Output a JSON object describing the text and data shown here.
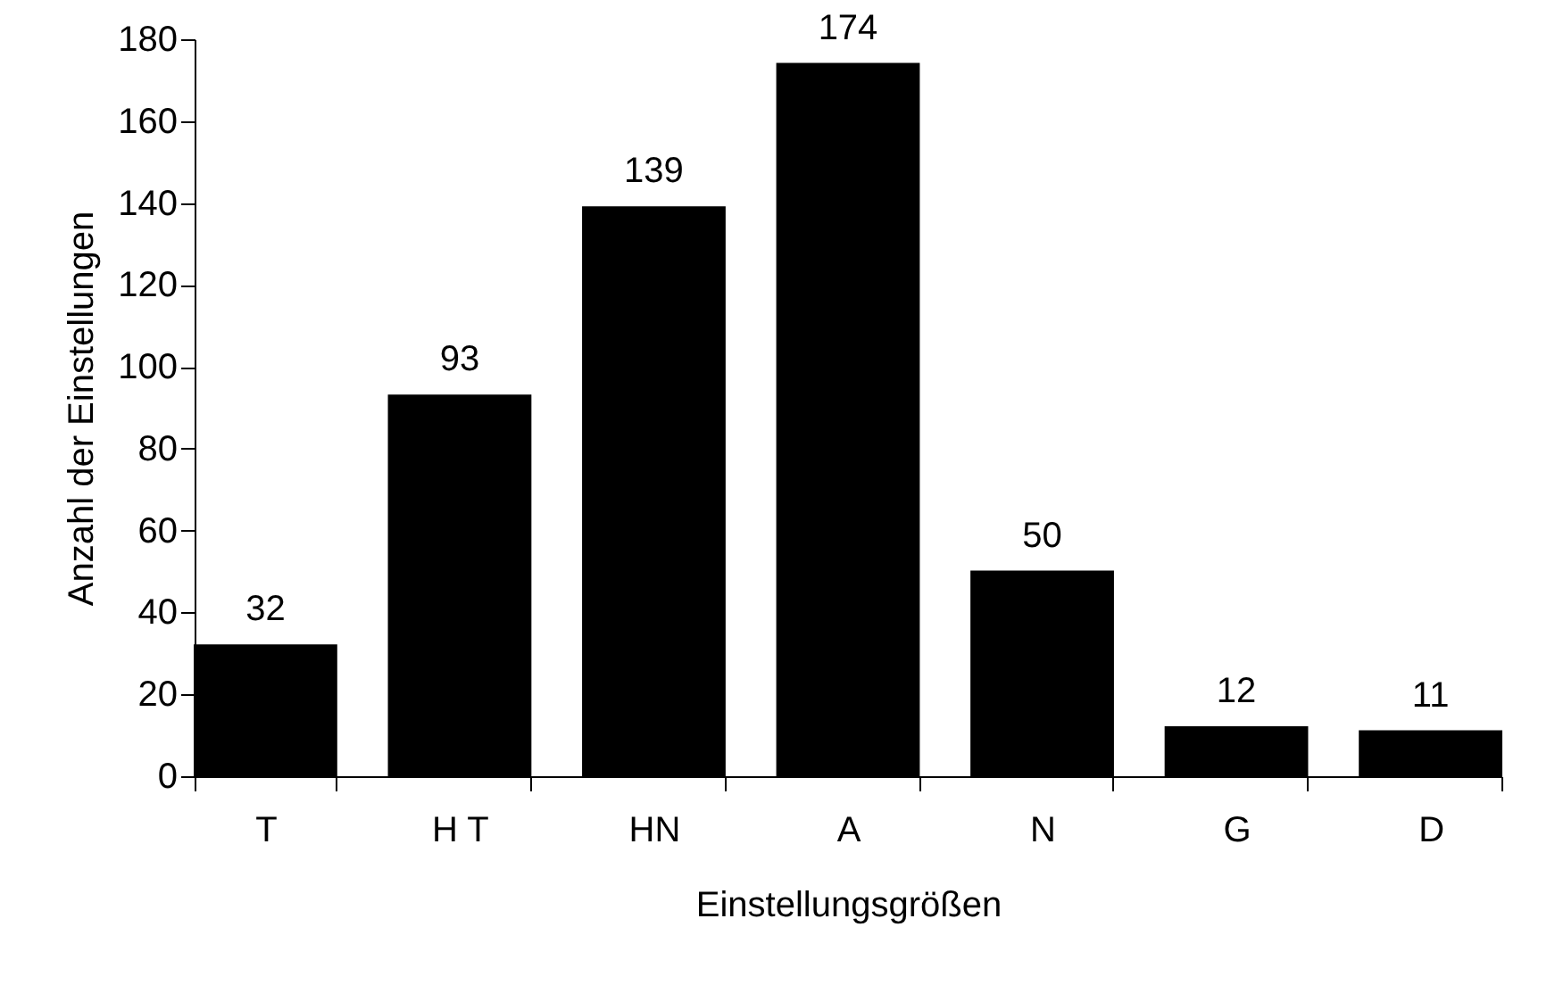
{
  "chart_data": {
    "type": "bar",
    "xlabel": "Einstellungsgrößen",
    "ylabel": "Anzahl der Einstellungen",
    "categories": [
      "T",
      "H T",
      "HN",
      "A",
      "N",
      "G",
      "D"
    ],
    "values": [
      32,
      93,
      139,
      174,
      50,
      12,
      11
    ],
    "color": "#000000",
    "ylim": [
      0,
      180
    ],
    "yticks": [
      0,
      20,
      40,
      60,
      80,
      100,
      120,
      140,
      160,
      180
    ],
    "data_labels": true,
    "grid": false
  }
}
